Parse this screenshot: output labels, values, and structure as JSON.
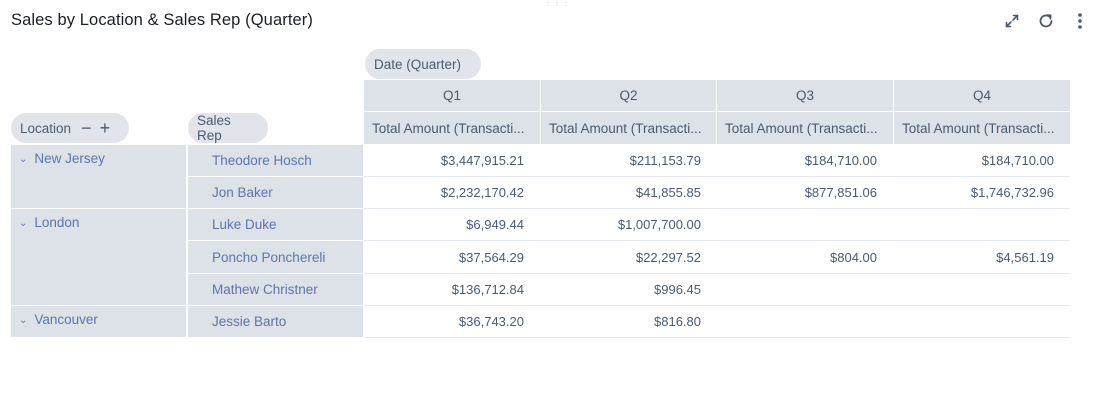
{
  "title": "Sales by Location & Sales Rep (Quarter)",
  "toolbar": {
    "expand_icon": "expand-icon",
    "refresh_icon": "refresh-icon",
    "more_icon": "more-vertical-icon"
  },
  "pills": {
    "column_dim": "Date (Quarter)",
    "row_dim_1": "Location",
    "row_dim_2": "Sales Rep",
    "minus": "−",
    "plus": "+"
  },
  "columns": {
    "quarters": [
      "Q1",
      "Q2",
      "Q3",
      "Q4"
    ],
    "measures": [
      "Total Amount (Transacti...",
      "Total Amount (Transacti...",
      "Total Amount (Transacti...",
      "Total Amount (Transacti..."
    ]
  },
  "locations": [
    {
      "name": "New Jersey",
      "chevron": "⌄"
    },
    {
      "name": "London",
      "chevron": "⌄"
    },
    {
      "name": "Vancouver",
      "chevron": "⌄"
    }
  ],
  "rows": [
    {
      "rep": "Theodore Hosch",
      "values": [
        "$3,447,915.21",
        "$211,153.79",
        "$184,710.00",
        "$184,710.00"
      ]
    },
    {
      "rep": "Jon Baker",
      "values": [
        "$2,232,170.42",
        "$41,855.85",
        "$877,851.06",
        "$1,746,732.96"
      ]
    },
    {
      "rep": "Luke Duke",
      "values": [
        "$6,949.44",
        "$1,007,700.00",
        "",
        ""
      ]
    },
    {
      "rep": "Poncho Ponchereli",
      "values": [
        "$37,564.29",
        "$22,297.52",
        "$804.00",
        "$4,561.19"
      ]
    },
    {
      "rep": "Mathew Christner",
      "values": [
        "$136,712.84",
        "$996.45",
        "",
        ""
      ]
    },
    {
      "rep": "Jessie Barto",
      "values": [
        "$36,743.20",
        "$816.80",
        "",
        ""
      ]
    }
  ]
}
